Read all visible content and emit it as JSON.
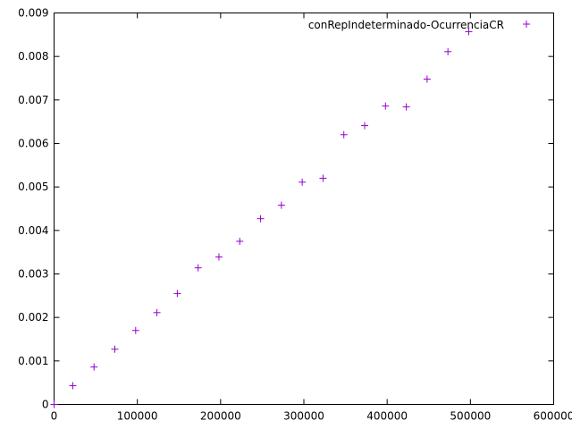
{
  "chart_data": {
    "type": "scatter",
    "title": "",
    "xlabel": "",
    "ylabel": "",
    "xlim": [
      0,
      600000
    ],
    "ylim": [
      0,
      0.009
    ],
    "x_ticks": [
      "0",
      "100000",
      "200000",
      "300000",
      "400000",
      "500000",
      "600000"
    ],
    "y_ticks": [
      "0",
      "0.001",
      "0.002",
      "0.003",
      "0.004",
      "0.005",
      "0.006",
      "0.007",
      "0.008",
      "0.009"
    ],
    "grid": false,
    "legend_position": "top-right",
    "series": [
      {
        "name": "conRepIndeterminado-OcurrenciaCR",
        "color": "#9400d3",
        "marker": "plus",
        "points": [
          {
            "x": 0,
            "y": 0.0
          },
          {
            "x": 22500,
            "y": 0.00043
          },
          {
            "x": 48000,
            "y": 0.00086
          },
          {
            "x": 73000,
            "y": 0.00127
          },
          {
            "x": 98000,
            "y": 0.0017
          },
          {
            "x": 123500,
            "y": 0.00211
          },
          {
            "x": 148000,
            "y": 0.00255
          },
          {
            "x": 173000,
            "y": 0.00314
          },
          {
            "x": 198000,
            "y": 0.00339
          },
          {
            "x": 223000,
            "y": 0.00375
          },
          {
            "x": 248000,
            "y": 0.00427
          },
          {
            "x": 273000,
            "y": 0.00458
          },
          {
            "x": 298000,
            "y": 0.00511
          },
          {
            "x": 323000,
            "y": 0.0052
          },
          {
            "x": 348000,
            "y": 0.0062
          },
          {
            "x": 373000,
            "y": 0.00641
          },
          {
            "x": 398000,
            "y": 0.00686
          },
          {
            "x": 423000,
            "y": 0.00684
          },
          {
            "x": 448000,
            "y": 0.00748
          },
          {
            "x": 473000,
            "y": 0.00811
          },
          {
            "x": 498000,
            "y": 0.00857
          }
        ]
      }
    ]
  }
}
